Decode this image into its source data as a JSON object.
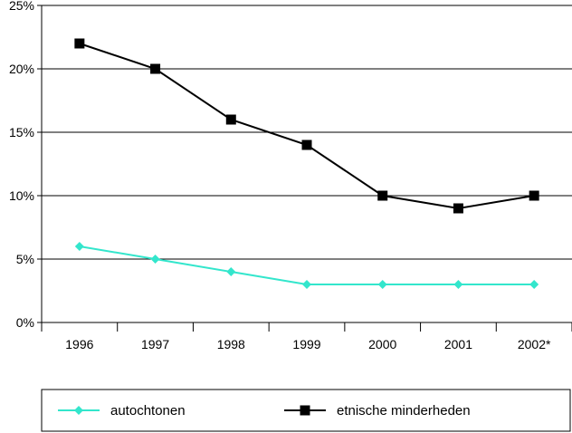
{
  "chart_data": {
    "type": "line",
    "categories": [
      "1996",
      "1997",
      "1998",
      "1999",
      "2000",
      "2001",
      "2002*"
    ],
    "series": [
      {
        "name": "autochtonen",
        "values": [
          6,
          5,
          4,
          3,
          3,
          3,
          3
        ],
        "color": "#33e6cc",
        "marker": "diamond"
      },
      {
        "name": "etnische minderheden",
        "values": [
          22,
          20,
          16,
          14,
          10,
          9,
          10
        ],
        "color": "#000000",
        "marker": "square"
      }
    ],
    "title": "",
    "xlabel": "",
    "ylabel": "",
    "ylim": [
      0,
      25
    ],
    "yticks": [
      0,
      5,
      10,
      15,
      20,
      25
    ],
    "ytick_format": "percent",
    "grid": true,
    "legend_position": "bottom"
  }
}
